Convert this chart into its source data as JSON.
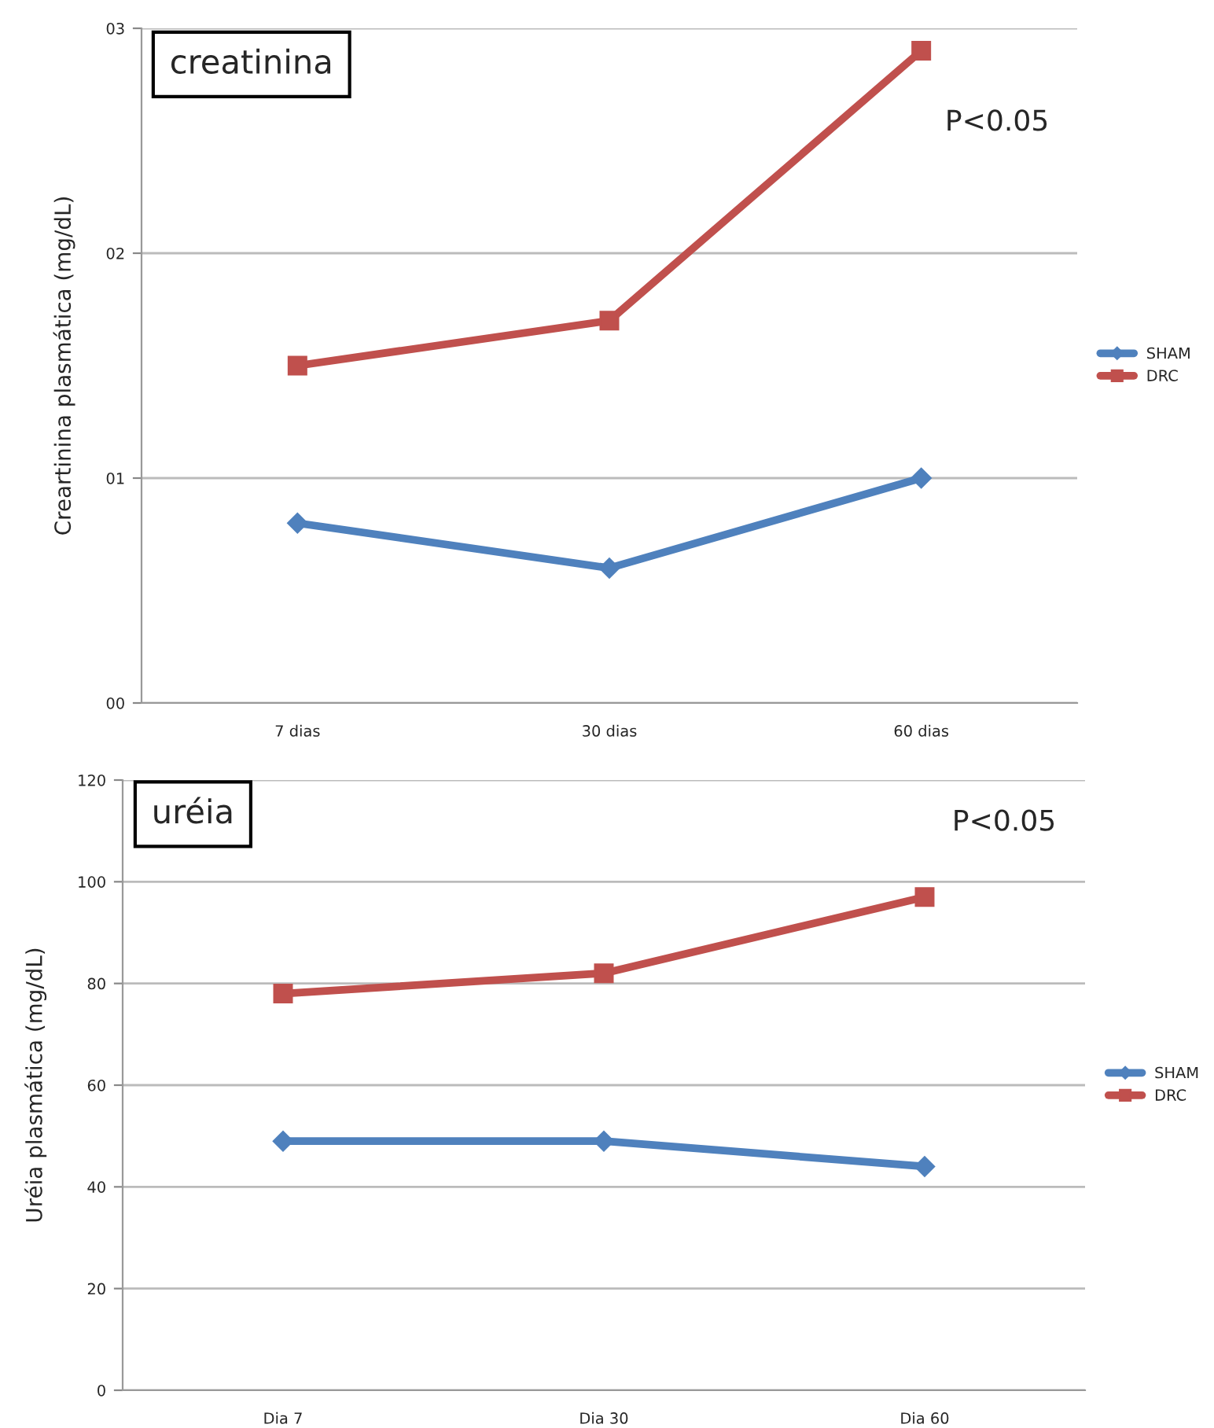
{
  "chart_data": [
    {
      "type": "line",
      "title": "creatinina",
      "ylabel": "Creartinina plasmática (mg/dL)",
      "annotations": [
        "P<0.05"
      ],
      "categories": [
        "7 dias",
        "30 dias",
        "60 dias"
      ],
      "series": [
        {
          "name": "SHAM",
          "color": "#4f81bd",
          "marker": "diamond",
          "values": [
            0.8,
            0.6,
            1.0
          ]
        },
        {
          "name": "DRC",
          "color": "#c0504d",
          "marker": "square",
          "values": [
            1.5,
            1.7,
            2.9
          ]
        }
      ],
      "ylim": [
        0,
        3
      ],
      "yticks": [
        {
          "value": 0,
          "label": "00"
        },
        {
          "value": 1,
          "label": "01"
        },
        {
          "value": 2,
          "label": "02"
        },
        {
          "value": 3,
          "label": "03"
        }
      ],
      "grid": "y",
      "legend": "right",
      "line_style": "solid"
    },
    {
      "type": "line",
      "title": "uréia",
      "ylabel": "Uréia plasmática (mg/dL)",
      "annotations": [
        "P<0.05"
      ],
      "categories": [
        "Dia 7",
        "Dia 30",
        "Dia 60"
      ],
      "series": [
        {
          "name": "SHAM",
          "color": "#4f81bd",
          "marker": "diamond",
          "values": [
            49,
            49,
            44
          ]
        },
        {
          "name": "DRC",
          "color": "#c0504d",
          "marker": "square",
          "values": [
            78,
            82,
            97
          ]
        }
      ],
      "ylim": [
        0,
        120
      ],
      "yticks": [
        0,
        20,
        40,
        60,
        80,
        100,
        120
      ],
      "grid": "y",
      "legend": "right",
      "line_style": "solid"
    }
  ]
}
